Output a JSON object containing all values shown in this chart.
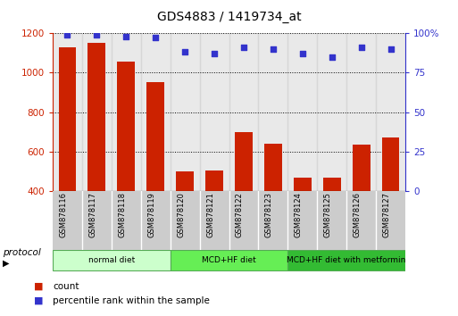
{
  "title": "GDS4883 / 1419734_at",
  "samples": [
    "GSM878116",
    "GSM878117",
    "GSM878118",
    "GSM878119",
    "GSM878120",
    "GSM878121",
    "GSM878122",
    "GSM878123",
    "GSM878124",
    "GSM878125",
    "GSM878126",
    "GSM878127"
  ],
  "counts": [
    1130,
    1150,
    1055,
    950,
    500,
    503,
    700,
    640,
    468,
    468,
    635,
    670
  ],
  "percentile_ranks": [
    99,
    99,
    98,
    97,
    88,
    87,
    91,
    90,
    87,
    85,
    91,
    90
  ],
  "ylim_left": [
    400,
    1200
  ],
  "ylim_right": [
    0,
    100
  ],
  "yticks_left": [
    400,
    600,
    800,
    1000,
    1200
  ],
  "yticks_right": [
    0,
    25,
    50,
    75,
    100
  ],
  "bar_color": "#cc2200",
  "dot_color": "#3333cc",
  "bar_width": 0.6,
  "groups": [
    {
      "label": "normal diet",
      "indices": [
        0,
        1,
        2,
        3
      ],
      "color": "#ccffcc"
    },
    {
      "label": "MCD+HF diet",
      "indices": [
        4,
        5,
        6,
        7
      ],
      "color": "#66ee55"
    },
    {
      "label": "MCD+HF diet with metformin",
      "indices": [
        8,
        9,
        10,
        11
      ],
      "color": "#33bb33"
    }
  ],
  "protocol_label": "protocol",
  "legend_count_label": "count",
  "legend_pct_label": "percentile rank within the sample",
  "left_tick_color": "#cc2200",
  "right_tick_color": "#3333cc",
  "bg_sample": "#d0d0d0"
}
